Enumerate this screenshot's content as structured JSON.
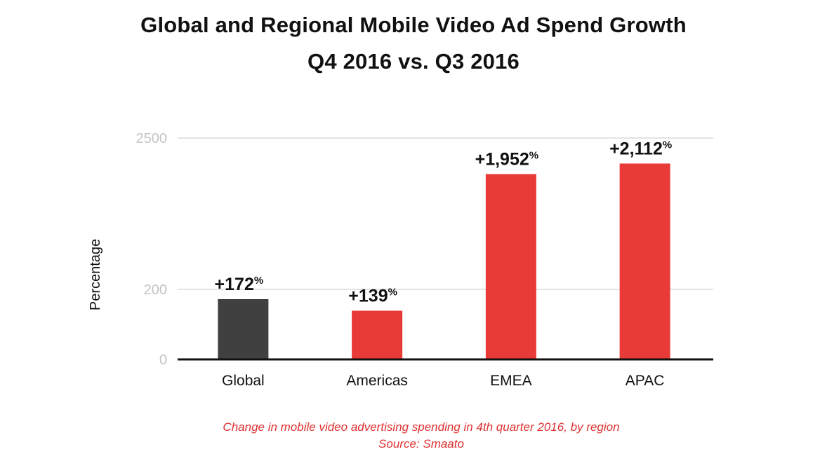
{
  "chart_data": {
    "type": "bar",
    "title": "Global and Regional Mobile Video Ad Spend Growth",
    "subtitle": "Q4 2016 vs. Q3 2016",
    "ylabel": "Percentage",
    "xlabel": "",
    "categories": [
      "Global",
      "Americas",
      "EMEA",
      "APAC"
    ],
    "values": [
      172,
      139,
      1952,
      2112
    ],
    "value_labels": [
      "+172",
      "+139",
      "+1,952",
      "+2,112"
    ],
    "value_suffix": "%",
    "y_ticks": [
      {
        "label": "0",
        "value": 0
      },
      {
        "label": "200",
        "value": 200
      },
      {
        "label": "2500",
        "value": 2500
      }
    ],
    "axis_break": true,
    "grid": true,
    "legend": "none",
    "colors": [
      "#404040",
      "#e83a37",
      "#e83a37",
      "#e83a37"
    ]
  },
  "caption": {
    "line1": "Change in mobile video advertising spending in 4th quarter 2016, by region",
    "line2": "Source: Smaato"
  },
  "colors": {
    "accent": "#e83a37",
    "global_bar": "#404040",
    "caption": "#e03030"
  }
}
